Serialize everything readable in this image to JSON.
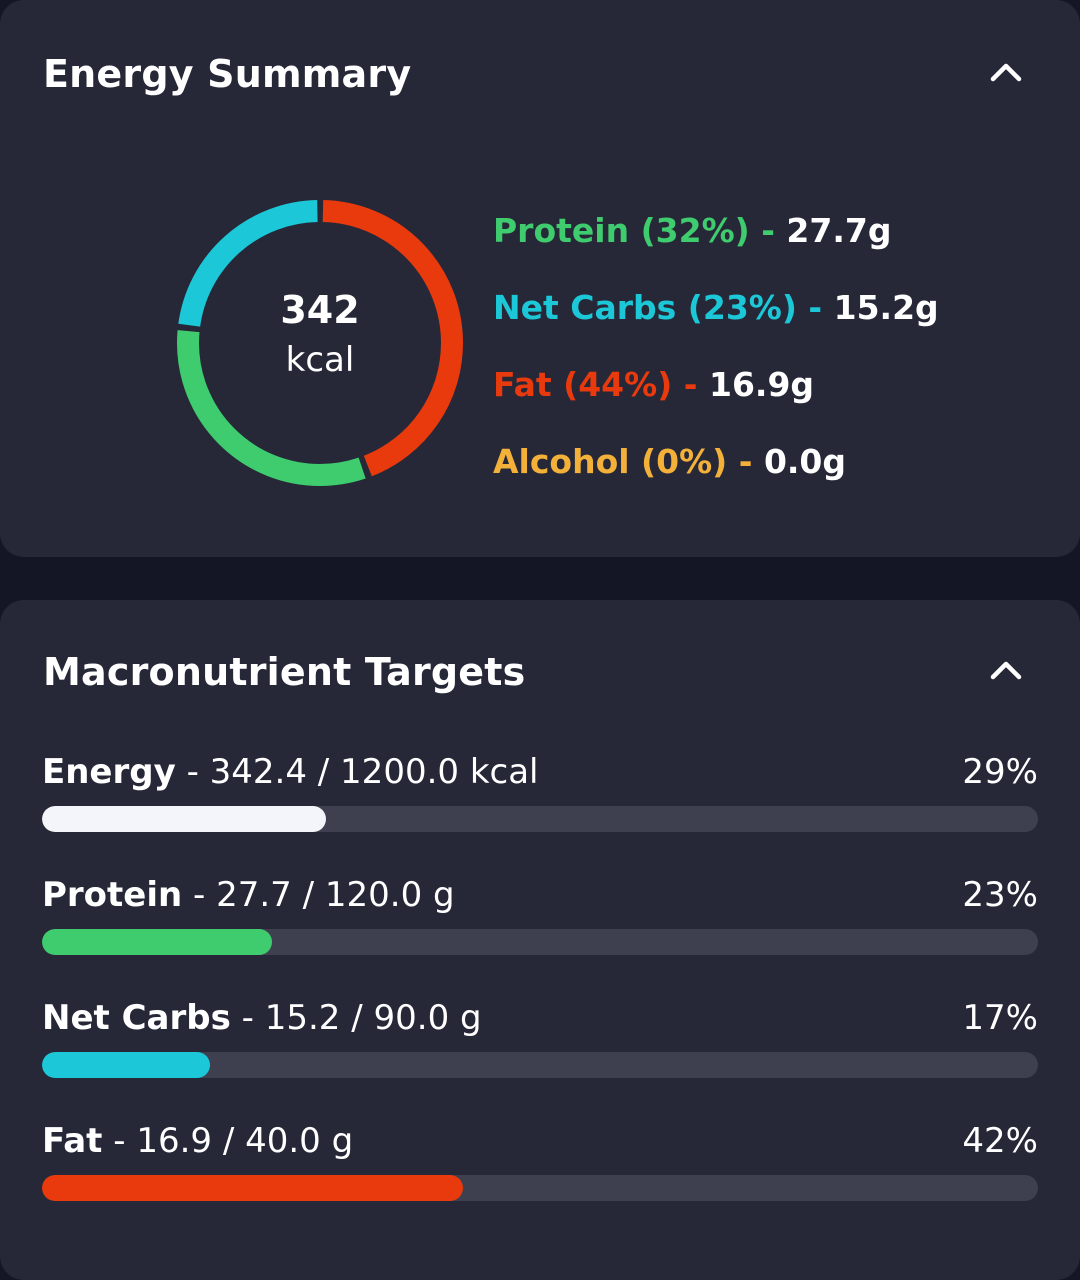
{
  "colors": {
    "protein": "#3fcc6e",
    "net_carbs": "#1cc8d8",
    "fat": "#e83a0c",
    "alcohol": "#f3b13a",
    "energy": "#f4f5fa",
    "ring_gap": "#262838"
  },
  "energy_summary": {
    "title": "Energy Summary",
    "collapse_icon": "chevron-up-icon",
    "total": "342",
    "unit": "kcal",
    "macros": [
      {
        "key": "protein",
        "label": "Protein (32%)",
        "sep": " - ",
        "amount": "27.7g",
        "percent": 32
      },
      {
        "key": "net_carbs",
        "label": "Net Carbs (23%)",
        "sep": " - ",
        "amount": "15.2g",
        "percent": 23
      },
      {
        "key": "fat",
        "label": "Fat (44%)",
        "sep": " - ",
        "amount": "16.9g",
        "percent": 44
      },
      {
        "key": "alcohol",
        "label": "Alcohol (0%)",
        "sep": " - ",
        "amount": "0.0g",
        "percent": 0
      }
    ]
  },
  "macro_targets": {
    "title": "Macronutrient Targets",
    "collapse_icon": "chevron-up-icon",
    "items": [
      {
        "key": "energy",
        "name": "Energy",
        "detail": " - 342.4 / 1200.0 kcal",
        "percent_label": "29%",
        "progress": 0.285
      },
      {
        "key": "protein",
        "name": "Protein",
        "detail": " - 27.7 / 120.0 g",
        "percent_label": "23%",
        "progress": 0.231
      },
      {
        "key": "net_carbs",
        "name": "Net Carbs",
        "detail": " - 15.2 / 90.0 g",
        "percent_label": "17%",
        "progress": 0.169
      },
      {
        "key": "fat",
        "name": "Fat",
        "detail": " - 16.9 / 40.0 g",
        "percent_label": "42%",
        "progress": 0.4225
      }
    ]
  }
}
